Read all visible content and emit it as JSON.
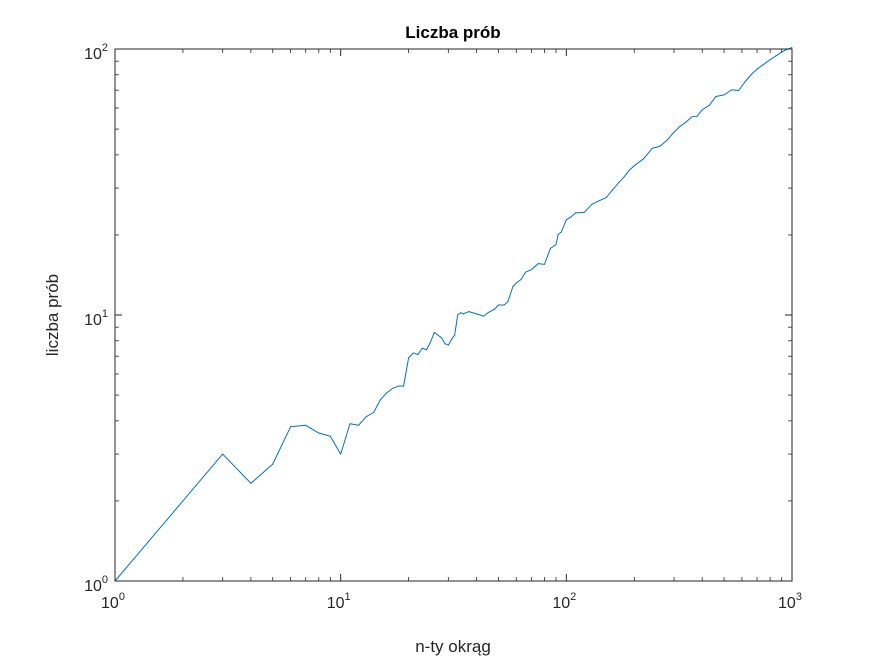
{
  "chart_data": {
    "type": "line",
    "title": "Liczba prób",
    "xlabel": "n-ty okrąg",
    "ylabel": "liczba prób",
    "xscale": "log",
    "yscale": "log",
    "xlim": [
      1,
      1000
    ],
    "ylim": [
      1,
      100
    ],
    "grid": false,
    "legend": "none",
    "series_color": "#0072BD",
    "x_ticks": [
      {
        "base": "10",
        "exp": "0",
        "value": 1
      },
      {
        "base": "10",
        "exp": "1",
        "value": 10
      },
      {
        "base": "10",
        "exp": "2",
        "value": 100
      },
      {
        "base": "10",
        "exp": "3",
        "value": 1000
      }
    ],
    "y_ticks": [
      {
        "base": "10",
        "exp": "0",
        "value": 1
      },
      {
        "base": "10",
        "exp": "1",
        "value": 10
      },
      {
        "base": "10",
        "exp": "2",
        "value": 100
      }
    ],
    "series": [
      {
        "x": [
          1,
          2,
          3,
          4,
          5,
          6,
          7,
          8,
          9,
          10,
          11,
          12,
          13,
          14,
          15,
          16,
          17,
          18,
          19,
          20,
          21,
          22,
          23,
          24,
          25,
          26,
          27,
          28,
          29,
          30,
          31,
          32,
          33,
          34,
          35,
          37,
          40,
          43,
          45,
          48,
          50,
          53,
          55,
          58,
          60,
          63,
          66,
          70,
          75,
          80,
          85,
          90,
          92,
          95,
          100,
          105,
          110,
          120,
          130,
          140,
          150,
          160,
          170,
          180,
          190,
          200,
          220,
          240,
          260,
          280,
          300,
          320,
          340,
          360,
          380,
          400,
          430,
          460,
          500,
          540,
          580,
          620,
          660,
          700,
          750,
          800,
          850,
          900,
          950,
          1000
        ],
        "values": [
          1,
          2,
          3,
          2.33,
          2.75,
          3.8,
          3.85,
          3.6,
          3.5,
          3,
          3.9,
          3.85,
          4.15,
          4.3,
          4.8,
          5.1,
          5.3,
          5.4,
          5.4,
          6.9,
          7.2,
          7.1,
          7.5,
          7.4,
          7.9,
          8.6,
          8.4,
          8.2,
          7.8,
          7.7,
          8.1,
          8.4,
          10,
          10.2,
          10.1,
          10.3,
          10.1,
          9.9,
          10.2,
          10.5,
          10.9,
          10.9,
          11.2,
          12.8,
          13.2,
          13.6,
          14.5,
          14.8,
          15.6,
          15.5,
          17.8,
          18.4,
          20.1,
          20.5,
          22.8,
          23.4,
          24.2,
          24.3,
          26.1,
          26.9,
          27.6,
          29.5,
          31.3,
          33,
          35,
          36.4,
          38.7,
          42.3,
          43.1,
          45.5,
          48.7,
          51.3,
          53.2,
          55.6,
          55.9,
          59.1,
          61.4,
          66.3,
          67.2,
          70.2,
          69.8,
          75.4,
          80.2,
          84,
          87.6,
          91.2,
          94.3,
          97.4,
          99.6,
          101.3
        ]
      }
    ]
  }
}
